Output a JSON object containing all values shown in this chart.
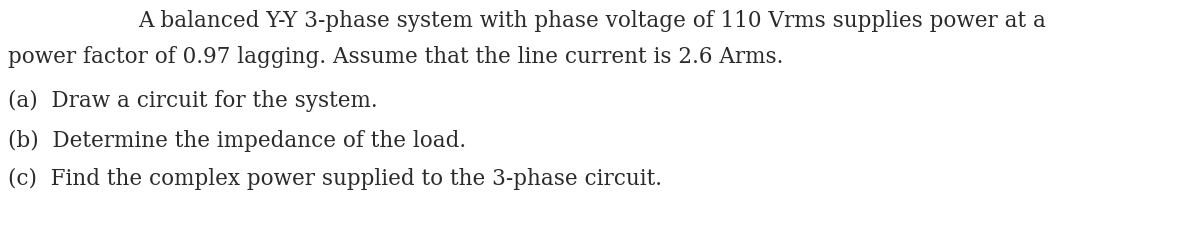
{
  "line1": "A balanced Y-Y 3-phase system with phase voltage of 110 Vrms supplies power at a",
  "line2": "power factor of 0.97 lagging. Assume that the line current is 2.6 Arms.",
  "line3": "(a)  Draw a circuit for the system.",
  "line4": "(b)  Determine the impedance of the load.",
  "line5": "(c)  Find the complex power supplied to the 3-phase circuit.",
  "font_size": 15.5,
  "font_color": "#2b2b2b",
  "background_color": "#ffffff",
  "font_family": "DejaVu Serif",
  "fig_width": 11.84,
  "fig_height": 2.28,
  "dpi": 100
}
